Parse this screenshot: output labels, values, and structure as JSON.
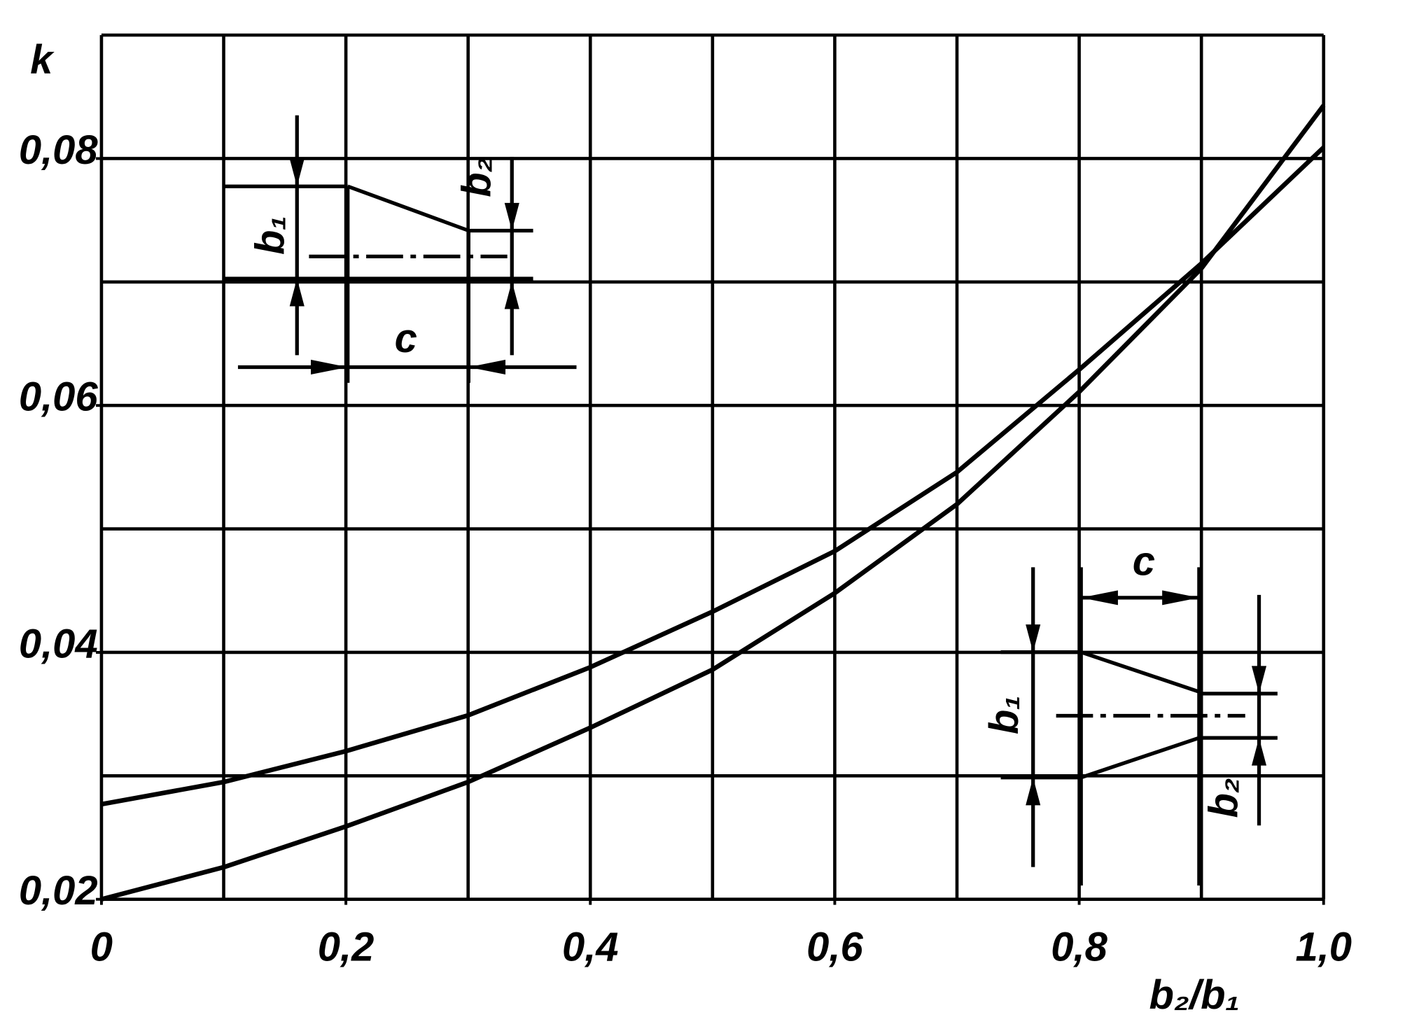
{
  "chart_data": {
    "type": "line",
    "x_label": "b₂/b₁",
    "y_label": "k",
    "x": [
      0,
      0.1,
      0.2,
      0.3,
      0.4,
      0.5,
      0.6,
      0.7,
      0.8,
      0.9,
      1.0
    ],
    "series": [
      {
        "color": "#000000",
        "values": [
          0.0277,
          0.0295,
          0.032,
          0.0349,
          0.0388,
          0.0433,
          0.0482,
          0.0546,
          0.0629,
          0.0715,
          0.0809
        ]
      },
      {
        "color": "#000000",
        "values": [
          0.02,
          0.0226,
          0.0259,
          0.0295,
          0.0339,
          0.0386,
          0.0448,
          0.052,
          0.0611,
          0.0711,
          0.0843
        ]
      }
    ],
    "xlim": [
      0,
      1.0
    ],
    "ylim": [
      0.02,
      0.09
    ],
    "xticks": [
      {
        "value": 0,
        "label": "0"
      },
      {
        "value": 0.2,
        "label": "0,2"
      },
      {
        "value": 0.4,
        "label": "0,4"
      },
      {
        "value": 0.6,
        "label": "0,6"
      },
      {
        "value": 0.8,
        "label": "0,8"
      },
      {
        "value": 1.0,
        "label": "1,0"
      }
    ],
    "yticks": [
      {
        "value": 0.02,
        "label": "0,02"
      },
      {
        "value": 0.04,
        "label": "0,04"
      },
      {
        "value": 0.06,
        "label": "0,06"
      },
      {
        "value": 0.08,
        "label": "0,08"
      }
    ],
    "xgrid": [
      0,
      0.1,
      0.2,
      0.3,
      0.4,
      0.5,
      0.6,
      0.7,
      0.8,
      0.9,
      1.0
    ],
    "ygrid": [
      0.02,
      0.03,
      0.04,
      0.05,
      0.06,
      0.07,
      0.08,
      0.09
    ],
    "grid": true,
    "annotations": {
      "inset1": {
        "b1": "b₁",
        "b2": "b₂",
        "c": "c"
      },
      "inset2": {
        "b1": "b₁",
        "b2": "b₂",
        "c": "c"
      }
    }
  }
}
